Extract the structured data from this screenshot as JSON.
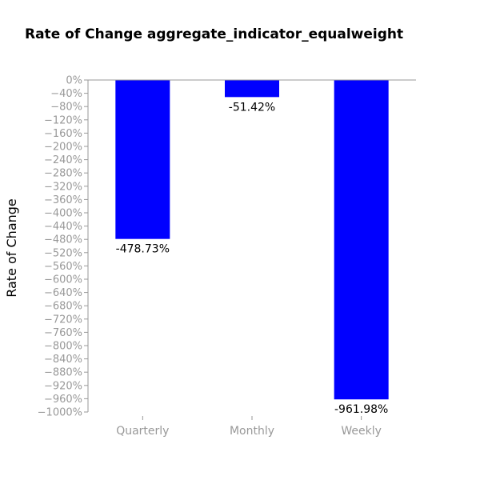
{
  "colors": {
    "bar": "#0000ff",
    "axis_line": "#999999",
    "tick_label": "#999999",
    "data_label": "#000000",
    "title": "#000000"
  },
  "chart_data": {
    "type": "bar",
    "title": "Rate of Change aggregate_indicator_equalweight",
    "xlabel": "",
    "ylabel": "Rate of Change",
    "categories": [
      "Quarterly",
      "Monthly",
      "Weekly"
    ],
    "values": [
      -478.73,
      -51.42,
      -961.98
    ],
    "data_labels": [
      "-478.73%",
      "-51.42%",
      "-961.98%"
    ],
    "ylim": [
      -1000,
      0
    ],
    "y_ticks": [
      0,
      -40,
      -80,
      -120,
      -160,
      -200,
      -240,
      -280,
      -320,
      -360,
      -400,
      -440,
      -480,
      -520,
      -560,
      -600,
      -640,
      -680,
      -720,
      -760,
      -800,
      -840,
      -880,
      -920,
      -960,
      -1000
    ],
    "y_tick_labels": [
      "0%",
      "−40%",
      "−80%",
      "−120%",
      "−160%",
      "−200%",
      "−240%",
      "−280%",
      "−320%",
      "−360%",
      "−400%",
      "−440%",
      "−480%",
      "−520%",
      "−560%",
      "−600%",
      "−640%",
      "−680%",
      "−720%",
      "−760%",
      "−800%",
      "−840%",
      "−880%",
      "−920%",
      "−960%",
      "−1000%"
    ],
    "grid": false,
    "legend": "none"
  }
}
